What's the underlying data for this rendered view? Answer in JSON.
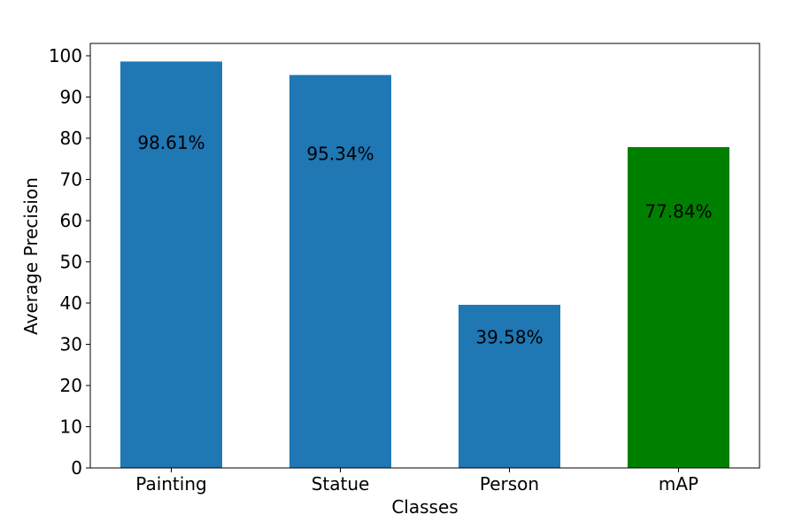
{
  "chart_data": {
    "type": "bar",
    "title": "",
    "xlabel": "Classes",
    "ylabel": "Average Precision",
    "categories": [
      "Painting",
      "Statue",
      "Person",
      "mAP"
    ],
    "values": [
      98.61,
      95.34,
      39.58,
      77.84
    ],
    "data_labels": [
      "98.61%",
      "95.34%",
      "39.58%",
      "77.84%"
    ],
    "bar_colors": [
      "#1f77b4",
      "#1f77b4",
      "#1f77b4",
      "#008000"
    ],
    "ylim": [
      0,
      103
    ],
    "yticks": [
      0,
      10,
      20,
      30,
      40,
      50,
      60,
      70,
      80,
      90,
      100
    ],
    "grid": false,
    "legend": "none"
  }
}
